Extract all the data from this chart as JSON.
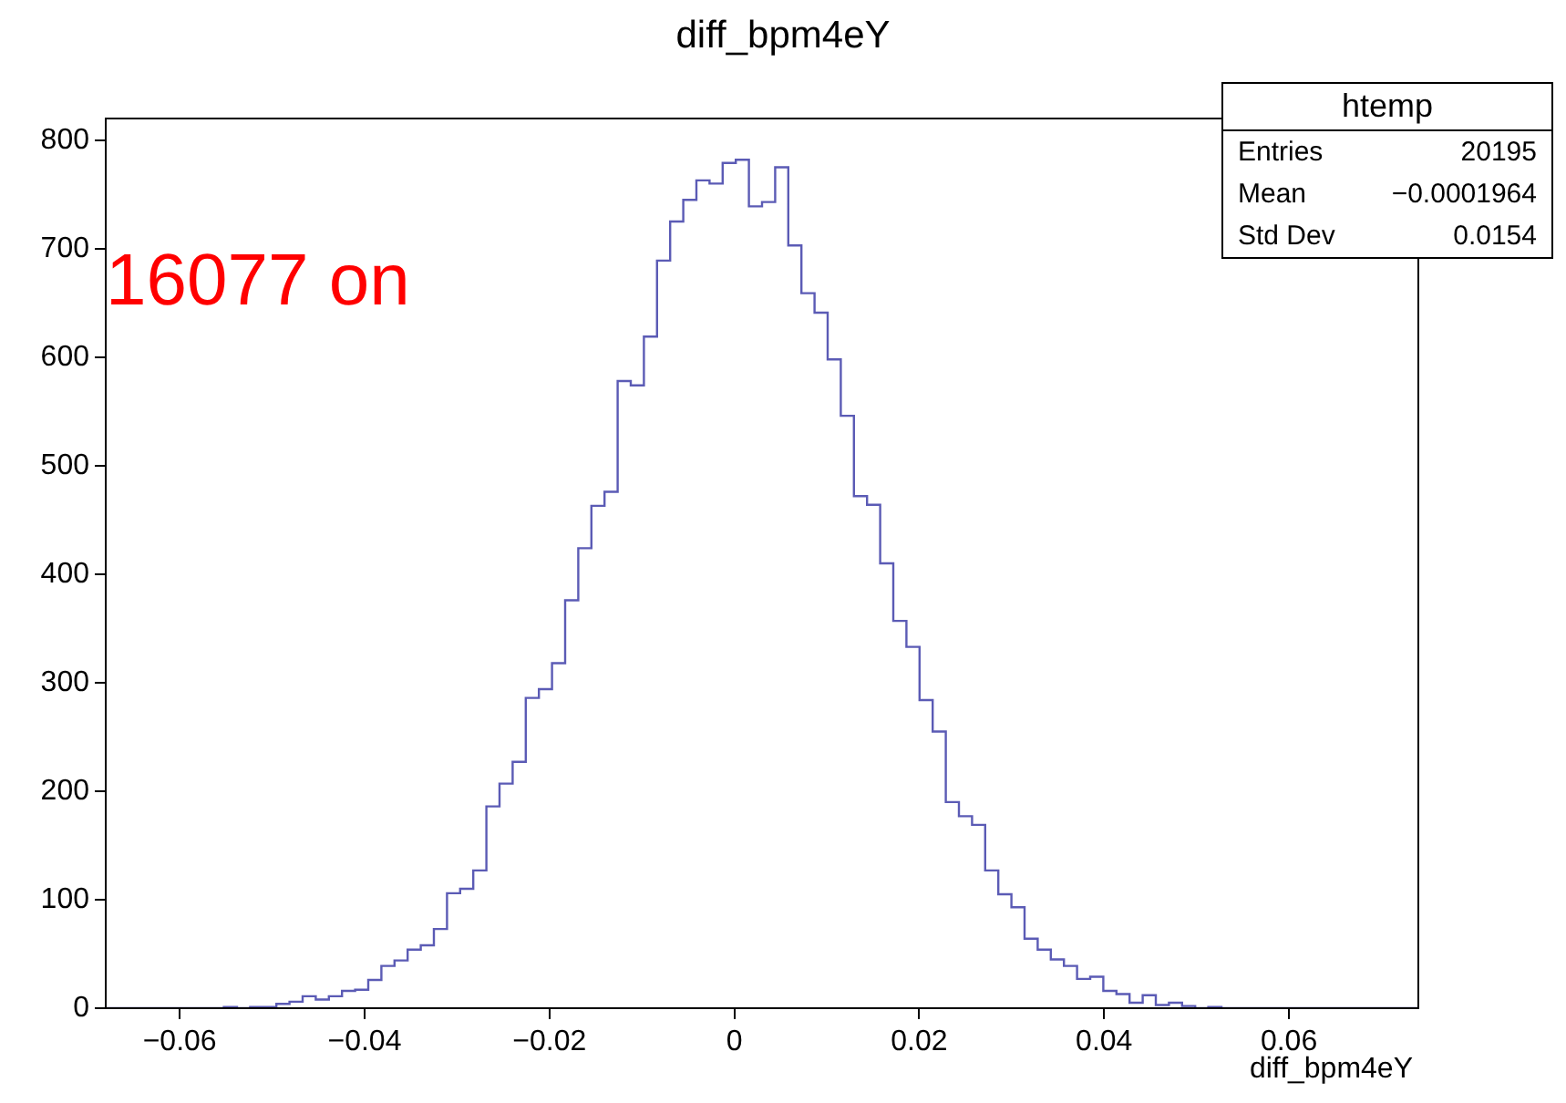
{
  "chart_data": {
    "type": "histogram",
    "title": "diff_bpm4eY",
    "xlabel": "diff_bpm4eY",
    "bins": [
      -0.068,
      -0.06658,
      -0.06516,
      -0.06374,
      -0.06232,
      -0.0609,
      -0.05948,
      -0.05806,
      -0.05664,
      -0.05522,
      -0.0538,
      -0.05238,
      -0.05096,
      -0.04954,
      -0.04812,
      -0.0467,
      -0.04528,
      -0.04386,
      -0.04244,
      -0.04102,
      -0.0396,
      -0.03818,
      -0.03676,
      -0.03534,
      -0.03392,
      -0.0325,
      -0.03108,
      -0.02966,
      -0.02824,
      -0.02682,
      -0.0254,
      -0.02398,
      -0.02256,
      -0.02114,
      -0.01972,
      -0.0183,
      -0.01688,
      -0.01546,
      -0.01404,
      -0.01262,
      -0.0112,
      -0.00978,
      -0.00836,
      -0.00694,
      -0.00552,
      -0.0041,
      -0.00268,
      -0.00126,
      0.00016,
      0.00158,
      0.003,
      0.00442,
      0.00584,
      0.00726,
      0.00868,
      0.0101,
      0.01152,
      0.01294,
      0.01436,
      0.01578,
      0.0172,
      0.01862,
      0.02004,
      0.02146,
      0.02288,
      0.0243,
      0.02572,
      0.02714,
      0.02856,
      0.02998,
      0.0314,
      0.03282,
      0.03424,
      0.03566,
      0.03708,
      0.0385,
      0.03992,
      0.04134,
      0.04276,
      0.04418,
      0.0456,
      0.04702,
      0.04844,
      0.04986,
      0.05128,
      0.0527,
      0.05412,
      0.05554,
      0.05696,
      0.05838,
      0.0598,
      0.06122,
      0.06264,
      0.06406,
      0.06548,
      0.0669,
      0.06832,
      0.06974,
      0.07116,
      0.07258,
      0.074
    ],
    "values": [
      0,
      0,
      0,
      0,
      0,
      0,
      0,
      0,
      0,
      1,
      0,
      1,
      1,
      4,
      6,
      11,
      8,
      11,
      16,
      17,
      26,
      39,
      44,
      54,
      58,
      73,
      106,
      110,
      127,
      186,
      207,
      227,
      286,
      294,
      318,
      376,
      424,
      463,
      476,
      578,
      574,
      619,
      689,
      725,
      745,
      763,
      760,
      779,
      782,
      739,
      743,
      775,
      703,
      659,
      641,
      598,
      546,
      472,
      464,
      410,
      357,
      333,
      284,
      255,
      190,
      177,
      169,
      127,
      105,
      93,
      64,
      54,
      45,
      39,
      27,
      29,
      16,
      13,
      5,
      12,
      3,
      5,
      2,
      0,
      1,
      0,
      0,
      0,
      0,
      0,
      0,
      0,
      0,
      0,
      0,
      0,
      0,
      0,
      0,
      0
    ],
    "color": "#5b5bb5",
    "xlim": [
      -0.068,
      0.074
    ],
    "xticks": [
      {
        "value": -0.06,
        "label": "−0.06"
      },
      {
        "value": -0.04,
        "label": "−0.04"
      },
      {
        "value": -0.02,
        "label": "−0.02"
      },
      0,
      0.02,
      0.04,
      0.06
    ],
    "ylim": [
      0,
      820
    ],
    "yticks": [
      0,
      100,
      200,
      300,
      400,
      500,
      600,
      700,
      800
    ],
    "grid": false,
    "legend": false,
    "annotations": [
      "htemp",
      "Entries",
      "20195",
      "Mean",
      "−0.0001964",
      "Std Dev",
      "0.0154",
      "16077 on"
    ]
  }
}
